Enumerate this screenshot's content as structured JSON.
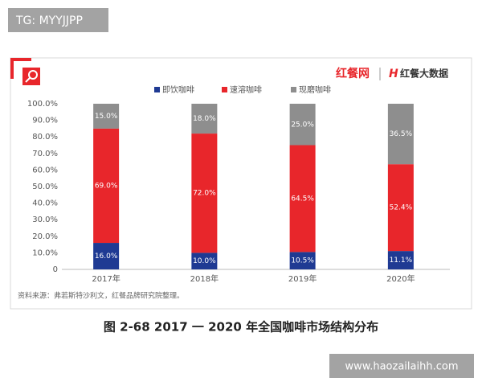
{
  "watermark": "TG: MYYJJPP",
  "site_watermark": "www.haozailaihh.com",
  "logo": {
    "brand": "红餐网",
    "sub": "红餐大数据"
  },
  "chart_data": {
    "type": "stacked_bar",
    "categories": [
      "2017年",
      "2018年",
      "2019年",
      "2020年"
    ],
    "series": [
      {
        "name": "即饮咖啡",
        "color": "#1f3a93",
        "values": [
          16.0,
          10.0,
          10.5,
          11.1
        ],
        "value_labels": [
          "16.0%",
          "10.0%",
          "10.5%",
          "11.1%"
        ]
      },
      {
        "name": "速溶咖啡",
        "color": "#e8262b",
        "values": [
          69.0,
          72.0,
          64.5,
          52.4
        ],
        "value_labels": [
          "69.0%",
          "72.0%",
          "64.5%",
          "52.4%"
        ]
      },
      {
        "name": "现磨咖啡",
        "color": "#8e8e8e",
        "values": [
          15.0,
          18.0,
          25.0,
          36.5
        ],
        "value_labels": [
          "15.0%",
          "18.0%",
          "25.0%",
          "36.5%"
        ]
      }
    ],
    "ylim": [
      0,
      100
    ],
    "yticks": [
      0,
      {
        "value": 10,
        "label": "10.0%"
      },
      {
        "value": 20,
        "label": "20.0%"
      },
      {
        "value": 30,
        "label": "30.0%"
      },
      {
        "value": 40,
        "label": "40.0%"
      },
      {
        "value": 50,
        "label": "50.0%"
      },
      {
        "value": 60,
        "label": "60.0%"
      },
      {
        "value": 70,
        "label": "70.0%"
      },
      {
        "value": 80,
        "label": "80.0%"
      },
      {
        "value": 90,
        "label": "90.0%"
      },
      {
        "value": 100,
        "label": "100.0%"
      }
    ],
    "grid": false,
    "legend": "top",
    "source": "资料来源：弗若斯特沙利文，红餐品牌研究院整理。",
    "caption": "图 2-68    2017 一 2020 年全国咖啡市场结构分布"
  }
}
